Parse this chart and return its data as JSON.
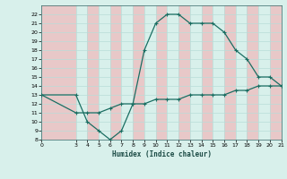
{
  "xlabel": "Humidex (Indice chaleur)",
  "line_color": "#1a6e62",
  "bg_color": "#d8f0eb",
  "band_color": "#e8c8c8",
  "grid_color": "#b8ddd8",
  "xlim": [
    0,
    21
  ],
  "ylim": [
    8,
    23
  ],
  "xticks": [
    0,
    3,
    4,
    5,
    6,
    7,
    8,
    9,
    10,
    11,
    12,
    13,
    14,
    15,
    16,
    17,
    18,
    19,
    20,
    21
  ],
  "yticks": [
    8,
    9,
    10,
    11,
    12,
    13,
    14,
    15,
    16,
    17,
    18,
    19,
    20,
    21,
    22
  ],
  "curve1_x": [
    0,
    3,
    4,
    5,
    6,
    7,
    8,
    9,
    10,
    11,
    12,
    13,
    14,
    15,
    16,
    17,
    18,
    19,
    20,
    21
  ],
  "curve1_y": [
    13,
    13,
    10,
    9,
    8,
    9,
    12,
    18,
    21,
    22,
    22,
    21,
    21,
    21,
    20,
    18,
    17,
    15,
    15,
    14
  ],
  "curve2_x": [
    0,
    3,
    4,
    5,
    6,
    7,
    8,
    9,
    10,
    11,
    12,
    13,
    14,
    15,
    16,
    17,
    18,
    19,
    20,
    21
  ],
  "curve2_y": [
    13,
    11,
    11,
    11,
    11.5,
    12,
    12,
    12,
    12.5,
    12.5,
    12.5,
    13,
    13,
    13,
    13,
    13.5,
    13.5,
    14,
    14,
    14
  ]
}
